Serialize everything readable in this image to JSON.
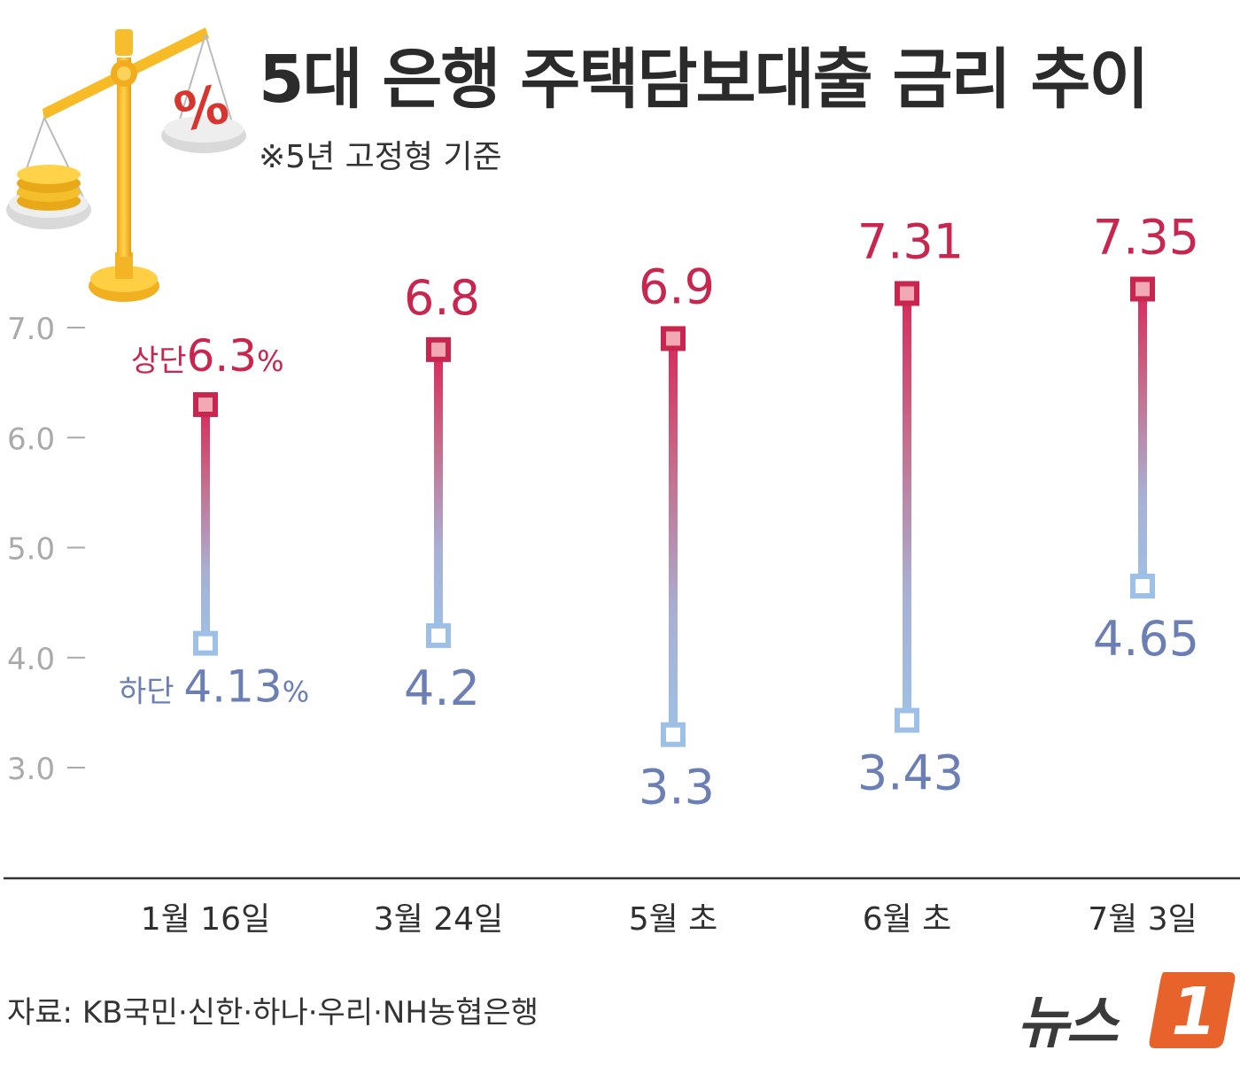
{
  "title": "5대 은행 주택담보대출 금리 추이",
  "subtitle": "※5년 고정형 기준",
  "source": "자료:  KB국민·신한·하나·우리·NH농협은행",
  "logo": {
    "text": "뉴스",
    "badge": "1"
  },
  "colors": {
    "upper": "#c8264f",
    "lower": "#6b7fb5",
    "lower_marker": "#9ec0e6",
    "axis": "#aaaaaa",
    "baseline": "#333333"
  },
  "icons": {
    "illustration": "balance-scale-icon"
  },
  "chart_data": {
    "type": "range",
    "categories": [
      "1월 16일",
      "3월 24일",
      "5월 초",
      "6월 초",
      "7월 3일"
    ],
    "series": [
      {
        "name": "상단",
        "values": [
          6.3,
          6.8,
          6.9,
          7.31,
          7.35
        ],
        "labels": [
          "6.3",
          "6.8",
          "6.9",
          "7.31",
          "7.35"
        ]
      },
      {
        "name": "하단",
        "values": [
          4.13,
          4.2,
          3.3,
          3.43,
          4.65
        ],
        "labels": [
          "4.13",
          "4.2",
          "3.3",
          "3.43",
          "4.65"
        ]
      }
    ],
    "first_label_prefix": {
      "upper": "상단",
      "lower": "하단"
    },
    "unit": "%",
    "yticks": [
      "7.0",
      "6.0",
      "5.0",
      "4.0",
      "3.0"
    ],
    "ylim": [
      3.0,
      7.0
    ],
    "grid": false
  }
}
